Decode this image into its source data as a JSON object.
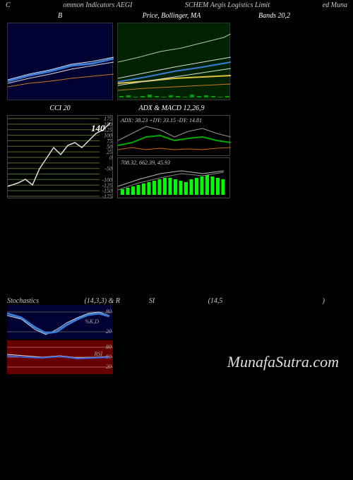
{
  "header": {
    "left": "C",
    "mid_left": "ommon Indicators AEGI",
    "mid_right": "SCHEM Aegis Logistics Limit",
    "right": "ed Muna"
  },
  "row1_labels": {
    "left": "B",
    "mid": "Price, Bollinger, MA",
    "right": "Bands 20,2"
  },
  "bbands_left": {
    "bg": "#000033",
    "series": {
      "orange": {
        "color": "#cc7722",
        "pts": [
          [
            0,
            90
          ],
          [
            30,
            85
          ],
          [
            60,
            82
          ],
          [
            90,
            78
          ],
          [
            120,
            75
          ],
          [
            150,
            72
          ]
        ]
      },
      "white1": {
        "color": "#dddddd",
        "pts": [
          [
            0,
            80
          ],
          [
            30,
            72
          ],
          [
            60,
            66
          ],
          [
            90,
            58
          ],
          [
            120,
            54
          ],
          [
            150,
            48
          ]
        ]
      },
      "white2": {
        "color": "#dddddd",
        "pts": [
          [
            0,
            85
          ],
          [
            30,
            78
          ],
          [
            60,
            72
          ],
          [
            90,
            65
          ],
          [
            120,
            60
          ],
          [
            150,
            55
          ]
        ]
      },
      "blue": {
        "color": "#3a7bd5",
        "width": 3,
        "pts": [
          [
            0,
            82
          ],
          [
            30,
            74
          ],
          [
            60,
            68
          ],
          [
            90,
            60
          ],
          [
            120,
            57
          ],
          [
            150,
            50
          ]
        ]
      }
    }
  },
  "bbands_right": {
    "bg": "#002200",
    "series": {
      "yellow": {
        "color": "#e0c040",
        "width": 2,
        "pts": [
          [
            0,
            85
          ],
          [
            40,
            82
          ],
          [
            80,
            78
          ],
          [
            120,
            76
          ],
          [
            160,
            74
          ]
        ]
      },
      "orange": {
        "color": "#cc7722",
        "pts": [
          [
            0,
            95
          ],
          [
            40,
            92
          ],
          [
            80,
            90
          ],
          [
            120,
            88
          ],
          [
            160,
            86
          ]
        ]
      },
      "white1": {
        "color": "#dddddd",
        "pts": [
          [
            0,
            78
          ],
          [
            40,
            70
          ],
          [
            80,
            62
          ],
          [
            120,
            55
          ],
          [
            160,
            48
          ]
        ]
      },
      "white2": {
        "color": "#dddddd",
        "pts": [
          [
            0,
            88
          ],
          [
            40,
            82
          ],
          [
            80,
            76
          ],
          [
            120,
            70
          ],
          [
            160,
            64
          ]
        ]
      },
      "blue": {
        "color": "#3a7bd5",
        "width": 2,
        "pts": [
          [
            0,
            83
          ],
          [
            40,
            76
          ],
          [
            80,
            68
          ],
          [
            120,
            62
          ],
          [
            160,
            55
          ]
        ]
      },
      "topline": {
        "color": "#a0d0a0",
        "pts": [
          [
            0,
            55
          ],
          [
            30,
            48
          ],
          [
            60,
            40
          ],
          [
            90,
            35
          ],
          [
            110,
            30
          ],
          [
            130,
            25
          ],
          [
            150,
            20
          ],
          [
            160,
            15
          ]
        ]
      }
    },
    "volume_bars": {
      "color": "#009900",
      "y": 105,
      "heights": [
        2,
        3,
        1,
        2,
        4,
        2,
        1,
        3,
        2,
        1,
        4,
        2,
        3,
        2,
        1,
        2
      ]
    }
  },
  "cci": {
    "label": "CCI 20",
    "value_label": "140",
    "grid_color": "#556b2f",
    "ticks": [
      175,
      150,
      125,
      100,
      75,
      50,
      25,
      0,
      "",
      -50,
      "",
      -100,
      -125,
      -150,
      -175
    ],
    "line": {
      "color": "#dddddd",
      "pts": [
        [
          0,
          100
        ],
        [
          15,
          95
        ],
        [
          25,
          90
        ],
        [
          35,
          98
        ],
        [
          45,
          75
        ],
        [
          55,
          60
        ],
        [
          65,
          45
        ],
        [
          75,
          55
        ],
        [
          85,
          42
        ],
        [
          95,
          38
        ],
        [
          105,
          45
        ],
        [
          115,
          35
        ],
        [
          125,
          25
        ],
        [
          135,
          20
        ],
        [
          145,
          10
        ]
      ]
    }
  },
  "adx": {
    "label": "ADX: 38.23 +DY: 33.15 -DY: 14.81",
    "series": {
      "gray": {
        "color": "#999",
        "pts": [
          [
            0,
            35
          ],
          [
            20,
            25
          ],
          [
            40,
            15
          ],
          [
            60,
            20
          ],
          [
            80,
            30
          ],
          [
            100,
            22
          ],
          [
            120,
            18
          ],
          [
            140,
            25
          ],
          [
            160,
            30
          ]
        ]
      },
      "green": {
        "color": "#00aa00",
        "width": 2,
        "pts": [
          [
            0,
            42
          ],
          [
            20,
            38
          ],
          [
            40,
            30
          ],
          [
            60,
            28
          ],
          [
            80,
            35
          ],
          [
            100,
            32
          ],
          [
            120,
            30
          ],
          [
            140,
            35
          ],
          [
            160,
            38
          ]
        ]
      },
      "orange": {
        "color": "#cc6600",
        "pts": [
          [
            0,
            48
          ],
          [
            20,
            45
          ],
          [
            40,
            48
          ],
          [
            60,
            46
          ],
          [
            80,
            48
          ],
          [
            100,
            47
          ],
          [
            120,
            48
          ],
          [
            140,
            46
          ],
          [
            160,
            45
          ]
        ]
      }
    }
  },
  "macd": {
    "label": "708.32, 662.39, 45.93",
    "title_right": "& MACD 12,26,9",
    "bars": {
      "color": "#00ff00",
      "heights": [
        8,
        10,
        12,
        14,
        16,
        18,
        20,
        22,
        24,
        24,
        22,
        20,
        18,
        22,
        24,
        26,
        28,
        26,
        24,
        22
      ]
    },
    "lines": {
      "gray1": {
        "color": "#bbb",
        "pts": [
          [
            0,
            40
          ],
          [
            30,
            30
          ],
          [
            60,
            22
          ],
          [
            90,
            18
          ],
          [
            120,
            22
          ],
          [
            150,
            18
          ]
        ]
      },
      "gray2": {
        "color": "#888",
        "pts": [
          [
            0,
            45
          ],
          [
            30,
            35
          ],
          [
            60,
            28
          ],
          [
            90,
            22
          ],
          [
            120,
            25
          ],
          [
            150,
            20
          ]
        ]
      }
    }
  },
  "stoch_labels": {
    "left": "Stochastics",
    "mid": "(14,3,3) & R",
    "si": "SI",
    "params": "(14,5",
    "close": ")"
  },
  "stoch": {
    "bg": "#000033",
    "upper": 80,
    "lower": 20,
    "label_text": "%K,D",
    "lines": {
      "white": {
        "color": "#ddd",
        "pts": [
          [
            0,
            15
          ],
          [
            20,
            20
          ],
          [
            40,
            35
          ],
          [
            55,
            42
          ],
          [
            70,
            35
          ],
          [
            85,
            25
          ],
          [
            100,
            18
          ],
          [
            115,
            12
          ],
          [
            130,
            10
          ],
          [
            145,
            15
          ]
        ]
      },
      "blue": {
        "color": "#3a7bd5",
        "width": 3,
        "pts": [
          [
            0,
            12
          ],
          [
            20,
            18
          ],
          [
            40,
            32
          ],
          [
            55,
            40
          ],
          [
            70,
            38
          ],
          [
            85,
            28
          ],
          [
            100,
            20
          ],
          [
            115,
            14
          ],
          [
            130,
            12
          ],
          [
            145,
            16
          ]
        ]
      }
    }
  },
  "rsi": {
    "bg": "#660000",
    "upper": 80,
    "mid": 50,
    "lower": 20,
    "label_text": "RSI",
    "lines": {
      "white": {
        "color": "#ddd",
        "pts": [
          [
            0,
            20
          ],
          [
            25,
            22
          ],
          [
            50,
            24
          ],
          [
            75,
            22
          ],
          [
            100,
            25
          ],
          [
            125,
            24
          ],
          [
            145,
            23
          ]
        ]
      },
      "blue": {
        "color": "#3a60d5",
        "width": 2,
        "pts": [
          [
            0,
            22
          ],
          [
            25,
            24
          ],
          [
            50,
            25
          ],
          [
            75,
            23
          ],
          [
            100,
            26
          ],
          [
            125,
            25
          ],
          [
            145,
            24
          ]
        ]
      }
    }
  },
  "watermark": "MunafaSutra.com"
}
